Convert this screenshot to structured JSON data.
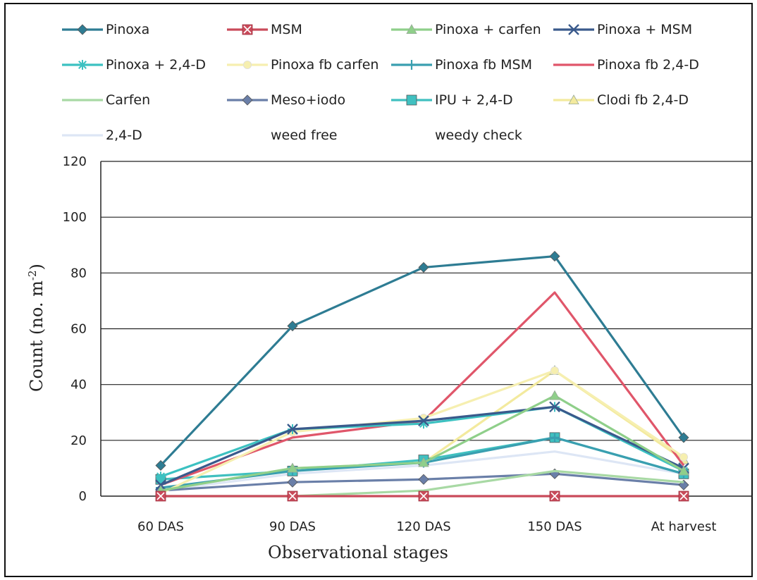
{
  "chart_data": {
    "type": "line",
    "categories": [
      "60 DAS",
      "90 DAS",
      "120 DAS",
      "150 DAS",
      "At harvest"
    ],
    "xlabel": "Observational stages",
    "ylabel": "Count (no. m",
    "ylabel_sup": "-2",
    "ylabel_end": ")",
    "ylim": [
      0,
      120
    ],
    "yticks": [
      0,
      20,
      40,
      60,
      80,
      100,
      120
    ],
    "grid": true,
    "legend_position": "top",
    "series": [
      {
        "name": "Pinoxa",
        "color": "#2e7c93",
        "marker": "diamond",
        "values": [
          11,
          61,
          82,
          86,
          21
        ]
      },
      {
        "name": "MSM",
        "color": "#c94a5a",
        "marker": "square-x",
        "values": [
          0,
          0,
          0,
          0,
          0
        ]
      },
      {
        "name": "Pinoxa + carfen",
        "color": "#8fcf8a",
        "marker": "triangle",
        "values": [
          2,
          10,
          12,
          36,
          9
        ]
      },
      {
        "name": "Pinoxa + MSM",
        "color": "#3a5a8c",
        "marker": "x",
        "values": [
          4,
          24,
          27,
          32,
          10
        ]
      },
      {
        "name": "Pinoxa + 2,4-D",
        "color": "#3cc1c1",
        "marker": "star",
        "values": [
          7,
          24,
          26,
          32,
          9
        ]
      },
      {
        "name": "Pinoxa fb carfen",
        "color": "#f6efb0",
        "marker": "circle",
        "values": [
          1,
          23,
          28,
          45,
          14
        ]
      },
      {
        "name": "Pinoxa fb MSM",
        "color": "#3a9fb0",
        "marker": "plus",
        "values": [
          3,
          9,
          12,
          21,
          8
        ]
      },
      {
        "name": "Pinoxa fb 2,4-D",
        "color": "#e0566a",
        "marker": "none",
        "values": [
          4,
          21,
          27,
          73,
          11
        ]
      },
      {
        "name": "Carfen",
        "color": "#a8d9a4",
        "marker": "none",
        "values": [
          0,
          0,
          2,
          9,
          5
        ]
      },
      {
        "name": "Meso+iodo",
        "color": "#6a7fa8",
        "marker": "diamond",
        "values": [
          2,
          5,
          6,
          8,
          4
        ]
      },
      {
        "name": "IPU + 2,4-D",
        "color": "#40c0c0",
        "marker": "square",
        "values": [
          6,
          9,
          13,
          21,
          8
        ]
      },
      {
        "name": "Clodi fb 2,4-D",
        "color": "#f3ea9e",
        "marker": "triangle",
        "values": [
          2,
          10,
          12,
          45,
          13
        ]
      },
      {
        "name": "2,4-D",
        "color": "#dde6f5",
        "marker": "none",
        "values": [
          2,
          8,
          11,
          16,
          8
        ]
      },
      {
        "name": "weed free",
        "color": "#ffffff",
        "marker": "none",
        "values": [
          0,
          0,
          0,
          0,
          0
        ]
      },
      {
        "name": "weedy check",
        "color": "#ffffff",
        "marker": "none",
        "values": [
          0,
          0,
          0,
          0,
          0
        ]
      }
    ]
  }
}
